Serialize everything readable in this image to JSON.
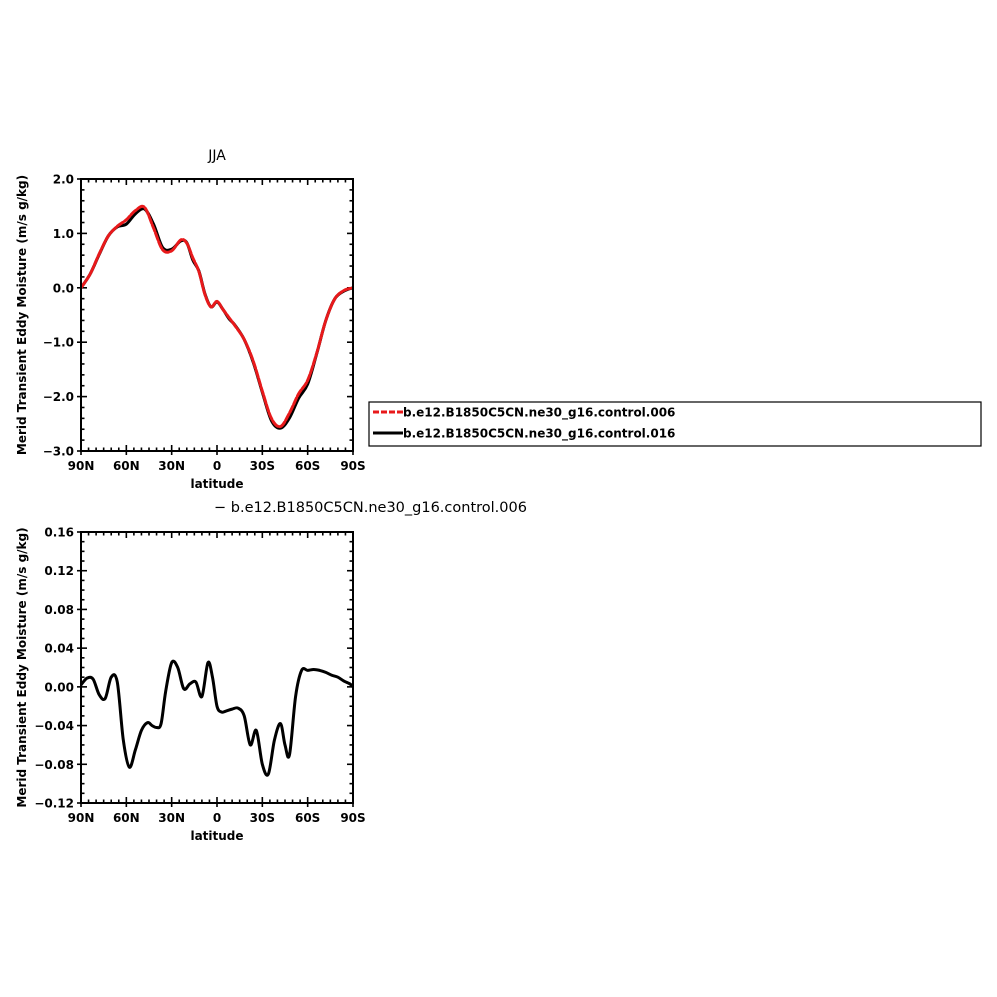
{
  "chart_data": [
    {
      "type": "line",
      "title": "JJA",
      "xlabel": "latitude",
      "ylabel": "Merid Transient Eddy Moisture (m/s g/kg)",
      "xlim": [
        90,
        -90
      ],
      "ylim": [
        -3.0,
        2.0
      ],
      "xticks": [
        90,
        60,
        30,
        0,
        -30,
        -60,
        -90
      ],
      "xtick_labels": [
        "90N",
        "60N",
        "30N",
        "0",
        "30S",
        "60S",
        "90S"
      ],
      "yticks": [
        2.0,
        1.0,
        0.0,
        -1.0,
        -2.0,
        -3.0
      ],
      "ytick_labels": [
        "2.0",
        "1.0",
        "0.0",
        "−1.0",
        "−2.0",
        "−3.0"
      ],
      "x": [
        90,
        84,
        78,
        72,
        66,
        60,
        54,
        48,
        42,
        36,
        30,
        24,
        20,
        16,
        12,
        8,
        4,
        0,
        -4,
        -8,
        -12,
        -18,
        -24,
        -30,
        -36,
        -42,
        -48,
        -54,
        -60,
        -66,
        -72,
        -78,
        -84,
        -90
      ],
      "series": [
        {
          "name": "b.e12.B1850C5CN.ne30_g16.control.006",
          "color": "#e8191b",
          "dashed": true,
          "values": [
            0.0,
            0.25,
            0.62,
            0.95,
            1.13,
            1.25,
            1.42,
            1.48,
            1.1,
            0.7,
            0.68,
            0.88,
            0.82,
            0.55,
            0.3,
            -0.12,
            -0.35,
            -0.25,
            -0.4,
            -0.55,
            -0.7,
            -0.95,
            -1.35,
            -1.9,
            -2.4,
            -2.55,
            -2.3,
            -1.95,
            -1.7,
            -1.2,
            -0.6,
            -0.2,
            -0.05,
            0.0
          ]
        },
        {
          "name": "b.e12.B1850C5CN.ne30_g16.control.016",
          "color": "#000000",
          "dashed": false,
          "values": [
            0.0,
            0.25,
            0.61,
            0.95,
            1.12,
            1.17,
            1.36,
            1.45,
            1.17,
            0.74,
            0.71,
            0.86,
            0.83,
            0.51,
            0.31,
            -0.11,
            -0.35,
            -0.26,
            -0.4,
            -0.57,
            -0.69,
            -0.95,
            -1.37,
            -1.92,
            -2.44,
            -2.58,
            -2.39,
            -2.03,
            -1.77,
            -1.21,
            -0.6,
            -0.2,
            -0.06,
            0.0
          ]
        }
      ],
      "legend": {
        "position": "right",
        "entries": [
          "b.e12.B1850C5CN.ne30_g16.control.006",
          "b.e12.B1850C5CN.ne30_g16.control.016"
        ]
      }
    },
    {
      "type": "line",
      "title": "− b.e12.B1850C5CN.ne30_g16.control.006",
      "xlabel": "latitude",
      "ylabel": "Merid Transient Eddy Moisture (m/s g/kg)",
      "xlim": [
        90,
        -90
      ],
      "ylim": [
        -0.12,
        0.16
      ],
      "xticks": [
        90,
        60,
        30,
        0,
        -30,
        -60,
        -90
      ],
      "xtick_labels": [
        "90N",
        "60N",
        "30N",
        "0",
        "30S",
        "60S",
        "90S"
      ],
      "yticks": [
        0.16,
        0.12,
        0.08,
        0.04,
        0.0,
        -0.04,
        -0.08,
        -0.12
      ],
      "ytick_labels": [
        "0.16",
        "0.12",
        "0.08",
        "0.04",
        "0.00",
        "−0.04",
        "−0.08",
        "−0.12"
      ],
      "x": [
        90,
        86,
        82,
        78,
        74,
        70,
        66,
        62,
        58,
        54,
        50,
        46,
        43,
        40,
        37,
        34,
        30,
        26,
        22,
        18,
        14,
        10,
        6,
        3,
        0,
        -3,
        -6,
        -10,
        -14,
        -18,
        -22,
        -26,
        -30,
        -34,
        -38,
        -42,
        -45,
        -48,
        -52,
        -56,
        -60,
        -64,
        -68,
        -72,
        -76,
        -80,
        -84,
        -88,
        -90
      ],
      "series": [
        {
          "name": "",
          "color": "#000000",
          "dashed": false,
          "values": [
            0.002,
            0.009,
            0.008,
            -0.008,
            -0.012,
            0.01,
            0.005,
            -0.055,
            -0.083,
            -0.065,
            -0.045,
            -0.037,
            -0.04,
            -0.042,
            -0.038,
            -0.005,
            0.025,
            0.02,
            -0.002,
            0.003,
            0.005,
            -0.01,
            0.025,
            0.01,
            -0.02,
            -0.026,
            -0.025,
            -0.023,
            -0.022,
            -0.03,
            -0.06,
            -0.045,
            -0.08,
            -0.09,
            -0.055,
            -0.038,
            -0.06,
            -0.07,
            -0.01,
            0.017,
            0.017,
            0.018,
            0.017,
            0.015,
            0.012,
            0.01,
            0.006,
            0.003,
            0.0
          ]
        }
      ]
    }
  ]
}
